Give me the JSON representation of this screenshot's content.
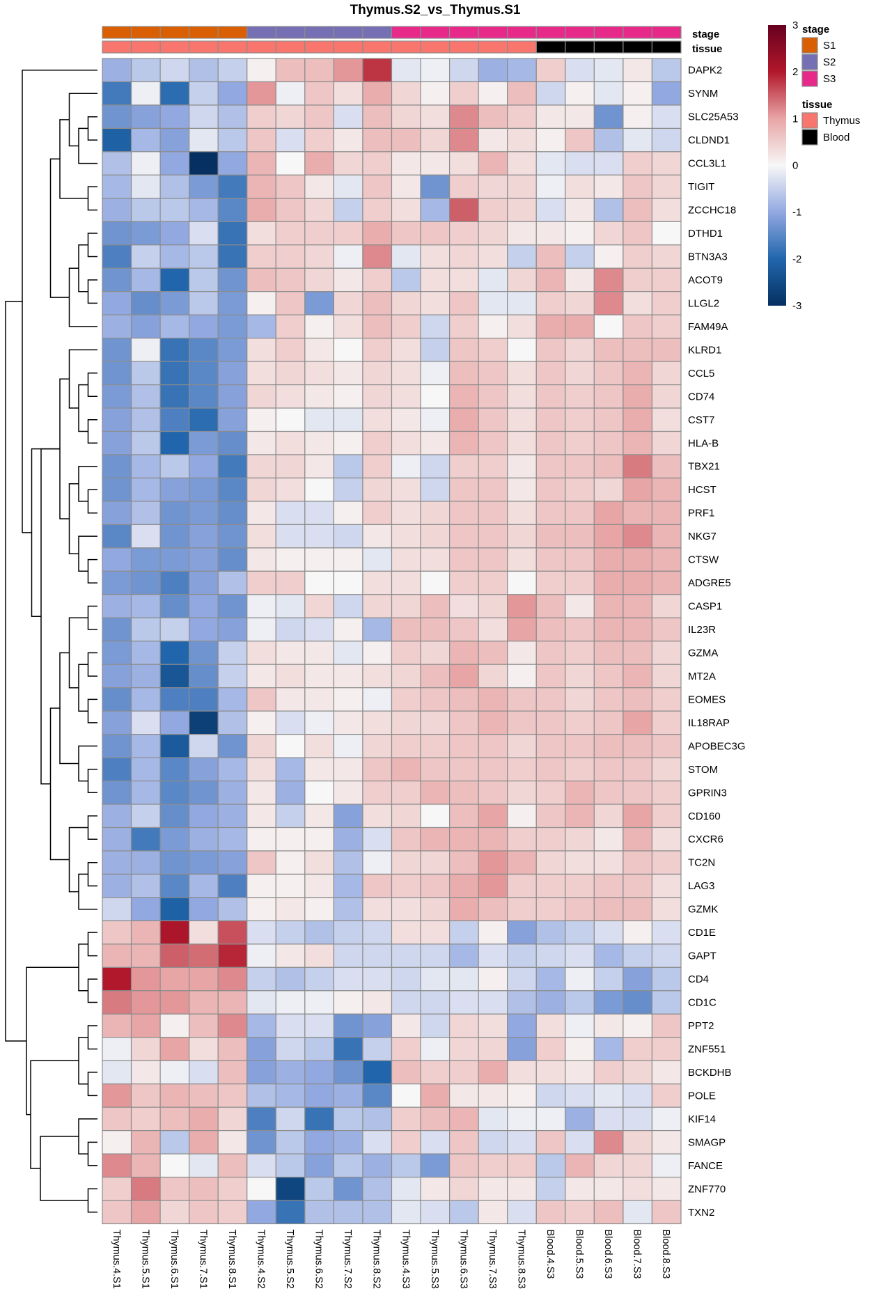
{
  "chart_data": {
    "type": "heatmap",
    "title": "Thymus.S2_vs_Thymus.S1",
    "columns": [
      "Thymus.4.S1",
      "Thymus.5.S1",
      "Thymus.6.S1",
      "Thymus.7.S1",
      "Thymus.8.S1",
      "Thymus.4.S2",
      "Thymus.5.S2",
      "Thymus.6.S2",
      "Thymus.7.S2",
      "Thymus.8.S2",
      "Thymus.4.S3",
      "Thymus.5.S3",
      "Thymus.6.S3",
      "Thymus.7.S3",
      "Thymus.8.S3",
      "Blood.4.S3",
      "Blood.5.S3",
      "Blood.6.S3",
      "Blood.7.S3",
      "Blood.8.S3"
    ],
    "rows": [
      "DAPK2",
      "SYNM",
      "SLC25A53",
      "CLDND1",
      "CCL3L1",
      "TIGIT",
      "ZCCHC18",
      "DTHD1",
      "BTN3A3",
      "ACOT9",
      "LLGL2",
      "FAM49A",
      "KLRD1",
      "CCL5",
      "CD74",
      "CST7",
      "HLA-B",
      "TBX21",
      "HCST",
      "PRF1",
      "NKG7",
      "CTSW",
      "ADGRE5",
      "CASP1",
      "IL23R",
      "GZMA",
      "MT2A",
      "EOMES",
      "IL18RAP",
      "APOBEC3G",
      "STOM",
      "GPRIN3",
      "CD160",
      "CXCR6",
      "TC2N",
      "LAG3",
      "GZMK",
      "CD1E",
      "GAPT",
      "CD4",
      "CD1C",
      "PPT2",
      "ZNF551",
      "BCKDHB",
      "POLE",
      "KIF14",
      "SMAGP",
      "FANCE",
      "ZNF770",
      "TXN2"
    ],
    "values": [
      [
        -0.9,
        -0.6,
        -0.4,
        -0.7,
        -0.5,
        0.1,
        0.7,
        0.7,
        1.1,
        1.8,
        -0.2,
        -0.1,
        -0.4,
        -0.9,
        -0.8,
        0.5,
        -0.3,
        -0.2,
        0.2,
        -0.6
      ],
      [
        -1.7,
        -0.1,
        -1.9,
        -0.5,
        -1.0,
        1.1,
        -0.1,
        0.6,
        0.3,
        0.9,
        0.4,
        0.1,
        0.5,
        0.1,
        0.7,
        -0.4,
        0.1,
        -0.2,
        0.1,
        -1.0
      ],
      [
        -1.3,
        -1.1,
        -1.0,
        -0.4,
        -0.7,
        0.5,
        0.4,
        0.6,
        -0.3,
        0.7,
        0.4,
        0.3,
        1.2,
        0.7,
        0.5,
        0.2,
        0.2,
        -1.3,
        0.1,
        -0.3
      ],
      [
        -2.1,
        -0.8,
        -1.1,
        -0.2,
        -0.6,
        0.6,
        -0.3,
        0.5,
        0.2,
        0.7,
        0.7,
        0.4,
        1.2,
        0.2,
        0.3,
        0.1,
        0.6,
        -0.7,
        -0.2,
        -0.4
      ],
      [
        -0.7,
        -0.1,
        -1.0,
        -3.0,
        -1.0,
        0.8,
        0.0,
        0.9,
        0.4,
        0.5,
        0.2,
        0.2,
        0.3,
        0.8,
        0.3,
        -0.2,
        -0.3,
        -0.3,
        0.5,
        0.4
      ],
      [
        -0.8,
        -0.2,
        -0.7,
        -1.2,
        -1.7,
        0.8,
        0.6,
        0.2,
        -0.2,
        0.6,
        0.2,
        -1.3,
        0.5,
        0.4,
        0.4,
        -0.1,
        0.3,
        0.2,
        0.6,
        0.4
      ],
      [
        -0.9,
        -0.6,
        -0.6,
        -0.8,
        -1.5,
        0.9,
        0.6,
        0.4,
        -0.5,
        0.5,
        0.3,
        -0.8,
        1.5,
        0.5,
        0.4,
        -0.3,
        0.2,
        -0.7,
        0.7,
        0.3
      ],
      [
        -1.3,
        -1.2,
        -1.0,
        -0.3,
        -1.8,
        0.3,
        0.5,
        0.5,
        0.5,
        0.9,
        0.6,
        0.6,
        0.5,
        0.4,
        0.2,
        0.2,
        0.1,
        0.4,
        0.6,
        0.0
      ],
      [
        -1.6,
        -0.5,
        -0.8,
        -0.6,
        -1.8,
        0.5,
        0.5,
        0.4,
        -0.1,
        1.2,
        -0.2,
        0.3,
        0.4,
        0.3,
        -0.5,
        0.7,
        -0.5,
        0.1,
        0.5,
        0.4
      ],
      [
        -1.3,
        -0.8,
        -2.0,
        -0.6,
        -1.3,
        0.7,
        0.6,
        0.4,
        0.2,
        0.5,
        -0.6,
        0.3,
        0.3,
        -0.2,
        0.4,
        0.8,
        0.2,
        1.2,
        0.5,
        0.5
      ],
      [
        -1.0,
        -1.4,
        -1.2,
        -0.6,
        -1.2,
        0.1,
        0.6,
        -1.2,
        0.4,
        0.7,
        0.4,
        0.3,
        0.6,
        -0.2,
        -0.2,
        0.5,
        0.4,
        1.2,
        0.3,
        0.5
      ],
      [
        -0.9,
        -1.1,
        -0.8,
        -1.0,
        -1.2,
        -0.8,
        0.5,
        0.1,
        0.3,
        0.7,
        0.5,
        -0.4,
        0.5,
        0.1,
        0.3,
        0.9,
        0.9,
        0.0,
        0.6,
        0.5
      ],
      [
        -1.3,
        -0.1,
        -1.8,
        -1.5,
        -1.2,
        0.3,
        0.5,
        0.2,
        0.0,
        0.5,
        0.3,
        -0.5,
        0.6,
        0.5,
        0.0,
        0.6,
        0.4,
        0.7,
        0.7,
        0.7
      ],
      [
        -1.3,
        -0.6,
        -1.8,
        -1.5,
        -1.1,
        0.3,
        0.4,
        0.3,
        0.2,
        0.4,
        0.3,
        -0.1,
        0.7,
        0.6,
        0.3,
        0.6,
        0.4,
        0.6,
        0.8,
        0.4
      ],
      [
        -1.2,
        -0.7,
        -1.8,
        -1.5,
        -1.1,
        0.4,
        0.3,
        0.2,
        0.1,
        0.4,
        0.3,
        0.0,
        0.8,
        0.6,
        0.3,
        0.6,
        0.5,
        0.6,
        0.9,
        0.4
      ],
      [
        -1.1,
        -0.7,
        -1.6,
        -1.9,
        -1.1,
        0.1,
        0.0,
        -0.2,
        -0.2,
        0.3,
        0.2,
        -0.1,
        0.9,
        0.6,
        0.3,
        0.6,
        0.5,
        0.6,
        0.9,
        0.3
      ],
      [
        -1.1,
        -0.6,
        -2.0,
        -1.2,
        -1.4,
        0.2,
        0.3,
        0.2,
        0.1,
        0.5,
        0.3,
        0.2,
        0.8,
        0.6,
        0.3,
        0.6,
        0.5,
        0.6,
        0.8,
        0.4
      ],
      [
        -1.3,
        -0.8,
        -0.6,
        -1.0,
        -1.7,
        0.4,
        0.4,
        0.2,
        -0.6,
        0.5,
        -0.1,
        -0.4,
        0.5,
        0.5,
        0.2,
        0.6,
        0.6,
        0.7,
        1.3,
        0.7
      ],
      [
        -1.3,
        -0.8,
        -1.1,
        -1.2,
        -1.5,
        0.4,
        0.3,
        0.0,
        -0.5,
        0.4,
        0.3,
        -0.4,
        0.6,
        0.6,
        0.2,
        0.6,
        0.5,
        0.4,
        1.0,
        0.8
      ],
      [
        -1.1,
        -0.7,
        -1.3,
        -1.2,
        -1.4,
        0.2,
        -0.3,
        -0.3,
        0.1,
        0.5,
        0.3,
        0.4,
        0.6,
        0.6,
        0.3,
        0.6,
        0.6,
        1.0,
        0.8,
        0.8
      ],
      [
        -1.5,
        -0.3,
        -1.3,
        -1.1,
        -1.3,
        0.3,
        -0.3,
        -0.3,
        -0.4,
        0.2,
        0.3,
        0.4,
        0.6,
        0.6,
        0.4,
        0.7,
        0.7,
        1.0,
        1.2,
        0.8
      ],
      [
        -1.0,
        -1.2,
        -1.2,
        -1.1,
        -1.4,
        0.2,
        0.1,
        0.1,
        0.1,
        -0.2,
        0.3,
        0.3,
        0.6,
        0.6,
        0.3,
        0.6,
        0.6,
        0.9,
        0.9,
        0.8
      ],
      [
        -1.2,
        -1.3,
        -1.6,
        -1.1,
        -0.7,
        0.5,
        0.5,
        0.0,
        0.0,
        0.3,
        0.3,
        0.0,
        0.5,
        0.5,
        0.0,
        0.5,
        0.5,
        0.9,
        0.9,
        0.8
      ],
      [
        -0.9,
        -0.8,
        -1.4,
        -1.0,
        -1.3,
        -0.1,
        -0.2,
        0.4,
        -0.4,
        0.4,
        0.4,
        0.7,
        0.3,
        0.4,
        1.1,
        0.7,
        0.2,
        0.8,
        0.8,
        0.4
      ],
      [
        -1.3,
        -0.6,
        -0.5,
        -1.0,
        -1.1,
        -0.1,
        -0.4,
        -0.3,
        0.1,
        -0.8,
        0.7,
        0.7,
        0.6,
        0.3,
        1.0,
        0.7,
        0.6,
        0.8,
        0.8,
        0.6
      ],
      [
        -1.2,
        -0.8,
        -2.0,
        -1.3,
        -0.5,
        0.3,
        0.2,
        0.2,
        -0.2,
        0.1,
        0.5,
        0.4,
        0.8,
        0.7,
        0.2,
        0.6,
        0.5,
        0.7,
        0.7,
        0.4
      ],
      [
        -1.1,
        -0.9,
        -2.3,
        -1.4,
        -0.5,
        0.2,
        0.3,
        0.2,
        0.2,
        0.3,
        0.4,
        0.7,
        1.0,
        0.4,
        0.1,
        0.6,
        0.4,
        0.6,
        0.8,
        0.4
      ],
      [
        -1.4,
        -0.8,
        -1.6,
        -1.6,
        -0.8,
        0.6,
        0.2,
        0.2,
        0.1,
        -0.1,
        0.5,
        0.6,
        0.7,
        0.8,
        0.6,
        0.6,
        0.4,
        0.6,
        0.7,
        0.5
      ],
      [
        -1.1,
        -0.3,
        -1.0,
        -2.7,
        -0.7,
        0.1,
        -0.3,
        -0.1,
        0.2,
        0.3,
        0.4,
        0.4,
        0.6,
        0.8,
        0.6,
        0.6,
        0.5,
        0.6,
        1.0,
        0.5
      ],
      [
        -1.3,
        -0.8,
        -2.2,
        -0.4,
        -1.3,
        0.4,
        0.0,
        0.3,
        -0.1,
        0.4,
        0.5,
        0.5,
        0.6,
        0.6,
        0.4,
        0.6,
        0.6,
        0.7,
        0.7,
        0.6
      ],
      [
        -1.6,
        -0.8,
        -1.5,
        -1.1,
        -0.8,
        0.3,
        -0.8,
        0.2,
        0.2,
        0.6,
        0.8,
        0.6,
        0.6,
        0.6,
        0.5,
        0.6,
        0.5,
        0.6,
        0.6,
        0.4
      ],
      [
        -1.3,
        -0.8,
        -1.5,
        -1.3,
        -0.9,
        0.2,
        -0.9,
        0.0,
        0.2,
        0.5,
        0.5,
        0.8,
        0.7,
        0.6,
        0.4,
        0.5,
        0.8,
        0.6,
        0.6,
        0.5
      ],
      [
        -0.9,
        -0.5,
        -1.4,
        -1.0,
        -0.9,
        0.2,
        -0.5,
        0.2,
        -1.1,
        0.3,
        0.4,
        0.0,
        0.7,
        1.0,
        0.1,
        0.6,
        0.8,
        0.4,
        1.0,
        0.5
      ],
      [
        -0.9,
        -1.7,
        -1.2,
        -0.9,
        -0.8,
        0.1,
        0.1,
        0.1,
        -0.9,
        -0.3,
        0.6,
        0.8,
        0.8,
        0.8,
        0.5,
        0.5,
        0.4,
        0.2,
        0.8,
        0.3
      ],
      [
        -0.9,
        -0.9,
        -1.3,
        -1.2,
        -1.1,
        0.6,
        0.1,
        0.3,
        -0.7,
        -0.1,
        0.4,
        0.4,
        0.7,
        1.1,
        0.8,
        0.4,
        0.3,
        0.3,
        0.6,
        0.5
      ],
      [
        -0.9,
        -0.7,
        -1.5,
        -0.8,
        -1.6,
        0.1,
        0.1,
        0.2,
        -0.8,
        0.6,
        0.5,
        0.6,
        0.9,
        1.1,
        0.5,
        0.5,
        0.5,
        0.6,
        0.6,
        0.3
      ],
      [
        -0.4,
        -1.0,
        -2.1,
        -1.0,
        -0.7,
        0.1,
        0.2,
        0.1,
        -0.7,
        0.3,
        0.3,
        0.4,
        0.9,
        0.7,
        0.5,
        0.5,
        0.6,
        0.7,
        0.7,
        0.3
      ],
      [
        0.6,
        0.8,
        2.1,
        0.3,
        1.6,
        -0.3,
        -0.5,
        -0.7,
        -0.5,
        -0.4,
        0.3,
        0.3,
        -0.5,
        0.1,
        -1.1,
        -0.7,
        -0.5,
        -0.3,
        0.1,
        -0.3
      ],
      [
        0.8,
        0.8,
        1.5,
        1.4,
        1.9,
        -0.1,
        0.2,
        0.3,
        -0.4,
        -0.4,
        -0.4,
        -0.4,
        -0.8,
        -0.3,
        -0.5,
        -0.4,
        -0.3,
        -0.8,
        -0.5,
        -0.4
      ],
      [
        2.0,
        1.1,
        1.0,
        1.0,
        1.2,
        -0.5,
        -0.7,
        -0.5,
        -0.3,
        -0.3,
        -0.4,
        -0.2,
        -0.2,
        0.1,
        -0.4,
        -0.8,
        -0.1,
        -0.5,
        -1.1,
        -0.6
      ],
      [
        1.3,
        1.1,
        1.1,
        0.8,
        0.8,
        -0.2,
        -0.1,
        -0.1,
        0.1,
        0.2,
        -0.4,
        -0.4,
        -0.3,
        -0.3,
        -0.7,
        -0.9,
        -0.6,
        -1.2,
        -1.4,
        -0.6
      ],
      [
        0.8,
        1.0,
        0.1,
        0.7,
        1.2,
        -0.8,
        -0.3,
        -0.3,
        -1.3,
        -1.1,
        0.2,
        -0.4,
        0.4,
        0.3,
        -1.0,
        0.3,
        -0.1,
        0.2,
        0.1,
        0.6
      ],
      [
        -0.1,
        0.4,
        1.0,
        0.3,
        0.7,
        -1.1,
        -0.4,
        -0.6,
        -1.8,
        -0.5,
        0.5,
        -0.1,
        0.4,
        0.4,
        -1.1,
        0.5,
        0.1,
        -0.8,
        0.5,
        0.5
      ],
      [
        -0.2,
        0.2,
        -0.1,
        -0.3,
        0.7,
        -1.1,
        -0.9,
        -1.0,
        -1.3,
        -2.0,
        0.7,
        0.5,
        0.5,
        0.9,
        0.3,
        0.3,
        0.2,
        0.5,
        0.4,
        0.2
      ],
      [
        1.1,
        0.6,
        0.8,
        0.7,
        0.6,
        -0.7,
        -0.8,
        -1.0,
        -0.9,
        -1.5,
        0.0,
        0.9,
        0.2,
        0.2,
        0.1,
        -0.4,
        -0.3,
        -0.2,
        -0.3,
        0.5
      ],
      [
        0.6,
        0.5,
        0.7,
        0.9,
        0.4,
        -1.6,
        -0.4,
        -1.8,
        -0.6,
        -0.7,
        0.5,
        0.7,
        0.8,
        -0.2,
        -0.1,
        -0.1,
        -0.9,
        -0.3,
        -0.3,
        -0.1
      ],
      [
        0.1,
        0.8,
        -0.6,
        0.9,
        0.2,
        -1.3,
        -0.6,
        -1.0,
        -0.9,
        -0.3,
        0.5,
        -0.3,
        0.6,
        -0.4,
        -0.3,
        0.6,
        -0.3,
        1.2,
        0.4,
        0.2
      ],
      [
        1.2,
        0.8,
        0.0,
        -0.2,
        0.7,
        -0.3,
        -0.6,
        -1.1,
        -0.6,
        -0.9,
        -0.6,
        -1.2,
        0.6,
        0.5,
        0.5,
        -0.6,
        0.8,
        0.4,
        0.4,
        -0.1
      ],
      [
        0.5,
        1.3,
        0.6,
        0.7,
        0.5,
        0.0,
        -2.6,
        -0.6,
        -1.3,
        -0.7,
        -0.2,
        0.2,
        0.4,
        0.2,
        0.2,
        -0.5,
        0.2,
        0.2,
        0.3,
        0.2
      ],
      [
        0.6,
        1.0,
        0.4,
        0.6,
        0.5,
        -1.0,
        -1.8,
        -0.7,
        -0.7,
        -0.7,
        -0.2,
        -0.3,
        -0.6,
        0.2,
        -0.3,
        0.6,
        0.5,
        0.7,
        -0.2,
        0.6
      ]
    ],
    "color_scale": {
      "min": -3,
      "max": 3,
      "stops": [
        {
          "v": -3,
          "color": "#053061"
        },
        {
          "v": -2,
          "color": "#2166ac"
        },
        {
          "v": -1,
          "color": "#92a8e0"
        },
        {
          "v": 0,
          "color": "#f7f7f7"
        },
        {
          "v": 1,
          "color": "#e8a5a5"
        },
        {
          "v": 2,
          "color": "#b2182b"
        },
        {
          "v": 3,
          "color": "#67001f"
        }
      ],
      "ticks": [
        3,
        2,
        1,
        0,
        -1,
        -2,
        -3
      ]
    },
    "annotations": {
      "stage": [
        "S1",
        "S1",
        "S1",
        "S1",
        "S1",
        "S2",
        "S2",
        "S2",
        "S2",
        "S2",
        "S3",
        "S3",
        "S3",
        "S3",
        "S3",
        "S3",
        "S3",
        "S3",
        "S3",
        "S3"
      ],
      "tissue": [
        "Thymus",
        "Thymus",
        "Thymus",
        "Thymus",
        "Thymus",
        "Thymus",
        "Thymus",
        "Thymus",
        "Thymus",
        "Thymus",
        "Thymus",
        "Thymus",
        "Thymus",
        "Thymus",
        "Thymus",
        "Blood",
        "Blood",
        "Blood",
        "Blood",
        "Blood"
      ]
    },
    "legends": {
      "stage": {
        "title": "stage",
        "items": [
          {
            "label": "S1",
            "color": "#d95f02"
          },
          {
            "label": "S2",
            "color": "#7570b3"
          },
          {
            "label": "S3",
            "color": "#e7298a"
          }
        ]
      },
      "tissue": {
        "title": "tissue",
        "items": [
          {
            "label": "Thymus",
            "color": "#f8766d"
          },
          {
            "label": "Blood",
            "color": "#000000"
          }
        ]
      }
    },
    "dendrogram": {
      "merges": [
        [
          -3,
          -4
        ],
        [
          -6,
          -7
        ],
        [
          1,
          -5
        ],
        [
          -2,
          3
        ],
        [
          2,
          4
        ],
        [
          -8,
          -9
        ],
        [
          -10,
          -11
        ],
        [
          6,
          7
        ],
        [
          -12,
          8
        ],
        [
          5,
          9
        ],
        [
          -14,
          -15
        ],
        [
          -16,
          -17
        ],
        [
          11,
          12
        ],
        [
          -13,
          13
        ],
        [
          -19,
          -20
        ],
        [
          -18,
          15
        ],
        [
          -22,
          -23
        ],
        [
          -21,
          17
        ],
        [
          16,
          18
        ],
        [
          14,
          19
        ],
        [
          -24,
          -25
        ],
        [
          -26,
          -27
        ],
        [
          -28,
          -29
        ],
        [
          22,
          23
        ],
        [
          21,
          24
        ],
        [
          -31,
          -32
        ],
        [
          -30,
          26
        ],
        [
          25,
          27
        ],
        [
          -33,
          -34
        ],
        [
          -35,
          -36
        ],
        [
          30,
          -37
        ],
        [
          29,
          31
        ],
        [
          28,
          32
        ],
        [
          20,
          33
        ],
        [
          20.5,
          34
        ],
        [
          -1,
          35
        ],
        [
          -38,
          -39
        ],
        [
          -40,
          -41
        ],
        [
          37,
          38
        ],
        [
          -42,
          -43
        ],
        [
          -44,
          -45
        ],
        [
          40,
          41
        ],
        [
          -47,
          -48
        ],
        [
          -46,
          43
        ],
        [
          -49,
          -50
        ],
        [
          44,
          45
        ],
        [
          42,
          46
        ],
        [
          39,
          47
        ],
        [
          36,
          48
        ]
      ]
    }
  }
}
